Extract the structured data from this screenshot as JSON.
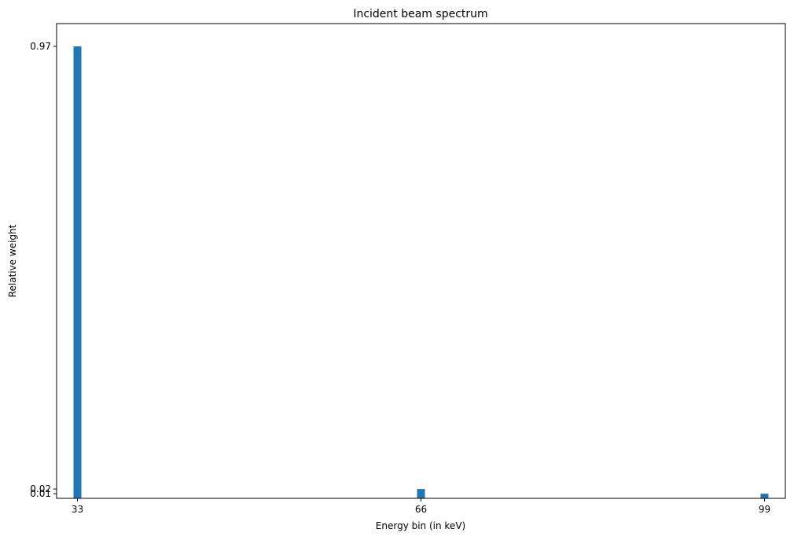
{
  "chart_data": {
    "type": "bar",
    "title": "Incident beam spectrum",
    "xlabel": "Energy bin (in keV)",
    "ylabel": "Relative weight",
    "x": [
      33,
      66,
      99
    ],
    "values": [
      0.97,
      0.02,
      0.01
    ],
    "xticks": [
      "33",
      "66",
      "99"
    ],
    "yticks": [
      "0.01",
      "0.02",
      "0.97"
    ],
    "xlim": [
      31,
      101
    ],
    "ylim": [
      0,
      0.97
    ],
    "bar_color": "#1f77b4",
    "grid": false,
    "legend": "none"
  }
}
